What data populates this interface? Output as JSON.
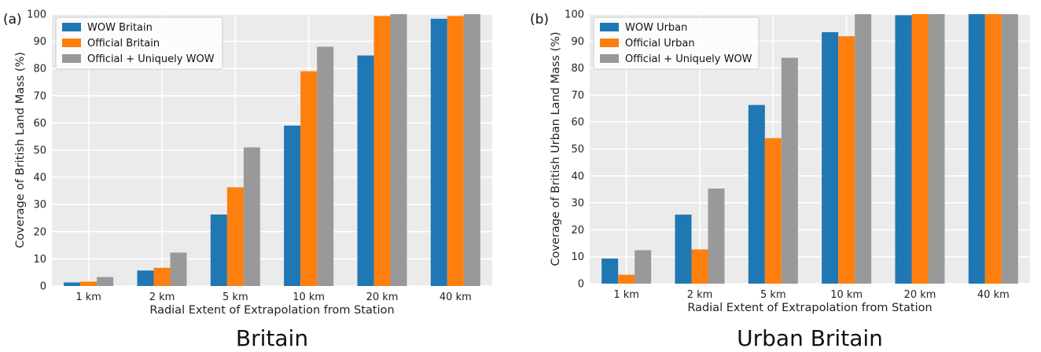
{
  "colors": {
    "blue": "#1f77b4",
    "orange": "#ff7f0e",
    "gray": "#999999",
    "plot_bg": "#ebebeb"
  },
  "chart_data": [
    {
      "type": "bar",
      "panel_label": "(a)",
      "caption": "Britain",
      "xlabel": "Radial Extent of Extrapolation from Station",
      "ylabel": "Coverage of British Land Mass (%)",
      "ylim": [
        0,
        100
      ],
      "yticks": [
        0,
        10,
        20,
        30,
        40,
        50,
        60,
        70,
        80,
        90,
        100
      ],
      "grid": true,
      "legend_position": "top-left",
      "categories": [
        "1 km",
        "2 km",
        "5 km",
        "10 km",
        "20 km",
        "40 km"
      ],
      "series": [
        {
          "name": "WOW Britain",
          "color": "#1f77b4",
          "values": [
            1.3,
            5.7,
            26.3,
            59.0,
            84.8,
            98.3
          ]
        },
        {
          "name": "Official Britain",
          "color": "#ff7f0e",
          "values": [
            1.6,
            6.7,
            36.3,
            79.0,
            99.3,
            99.3
          ]
        },
        {
          "name": "Official + Uniquely WOW",
          "color": "#999999",
          "values": [
            3.3,
            12.3,
            51.0,
            88.0,
            100,
            100
          ]
        }
      ]
    },
    {
      "type": "bar",
      "panel_label": "(b)",
      "caption": "Urban Britain",
      "xlabel": "Radial Extent of Extrapolation from Station",
      "ylabel": "Coverage of British Urban Land Mass (%)",
      "ylim": [
        0,
        100
      ],
      "yticks": [
        0,
        10,
        20,
        30,
        40,
        50,
        60,
        70,
        80,
        90,
        100
      ],
      "grid": true,
      "legend_position": "top-left",
      "categories": [
        "1 km",
        "2 km",
        "5 km",
        "10 km",
        "20 km",
        "40 km"
      ],
      "series": [
        {
          "name": "WOW Urban",
          "color": "#1f77b4",
          "values": [
            9.3,
            25.6,
            66.3,
            93.3,
            99.6,
            100
          ]
        },
        {
          "name": "Official Urban",
          "color": "#ff7f0e",
          "values": [
            3.3,
            12.7,
            54.0,
            91.8,
            100,
            100
          ]
        },
        {
          "name": "Official + Uniquely WOW",
          "color": "#999999",
          "values": [
            12.4,
            35.3,
            83.8,
            100,
            100,
            100
          ]
        }
      ]
    }
  ]
}
